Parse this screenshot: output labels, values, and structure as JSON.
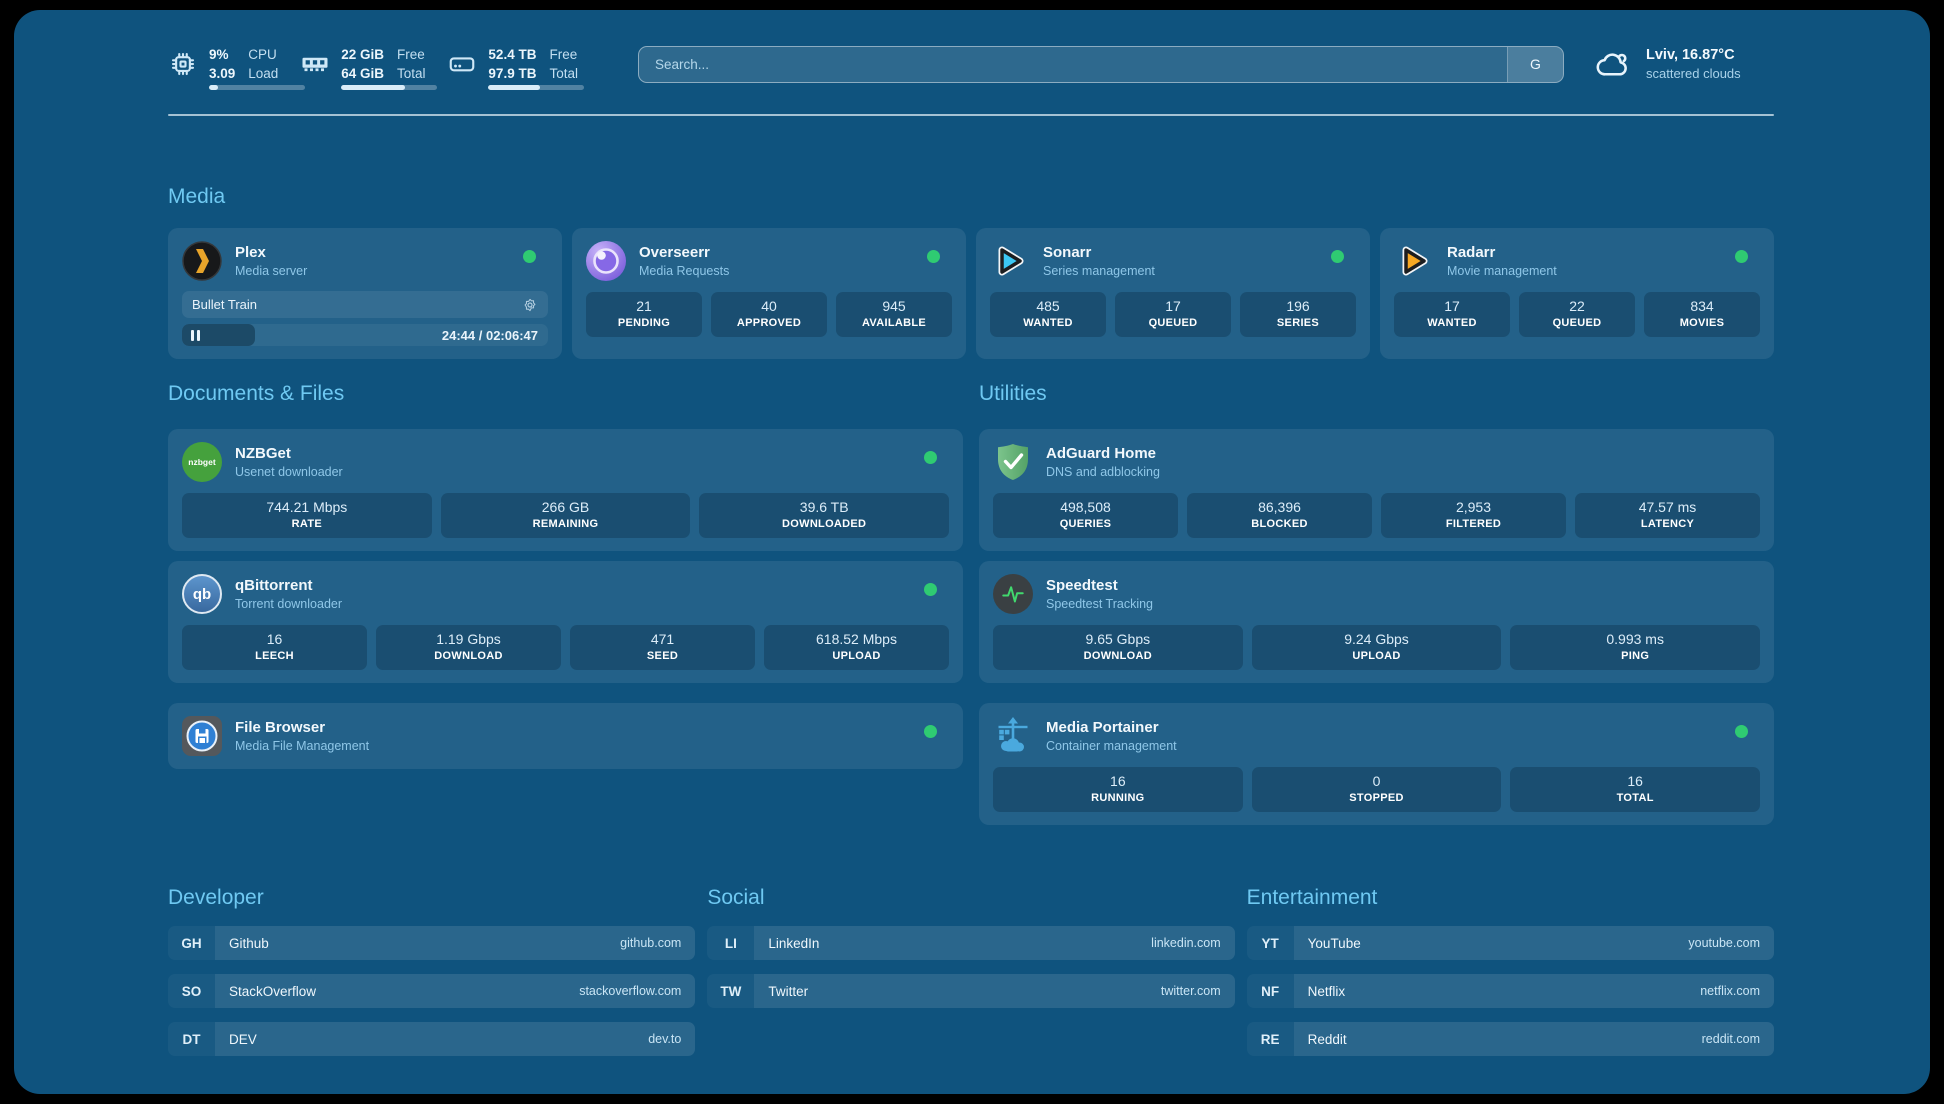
{
  "system": {
    "cpu": {
      "value_top": "9%",
      "value_bottom": "3.09",
      "label_top": "CPU",
      "label_bottom": "Load",
      "progress_pct": 9
    },
    "memory": {
      "value_top": "22 GiB",
      "value_bottom": "64 GiB",
      "label_top": "Free",
      "label_bottom": "Total",
      "progress_pct": 66
    },
    "disk": {
      "value_top": "52.4 TB",
      "value_bottom": "97.9 TB",
      "label_top": "Free",
      "label_bottom": "Total",
      "progress_pct": 54
    }
  },
  "search": {
    "placeholder": "Search...",
    "provider": "G"
  },
  "weather": {
    "location": "Lviv, 16.87°C",
    "condition": "scattered clouds"
  },
  "sections": {
    "media": "Media",
    "documents": "Documents & Files",
    "utilities": "Utilities",
    "developer": "Developer",
    "social": "Social",
    "entertainment": "Entertainment"
  },
  "apps": {
    "plex": {
      "name": "Plex",
      "desc": "Media server",
      "now_playing": {
        "title": "Bullet Train",
        "time": "24:44 / 02:06:47",
        "progress_pct": 20
      }
    },
    "overseerr": {
      "name": "Overseerr",
      "desc": "Media Requests",
      "stats": [
        {
          "value": "21",
          "label": "PENDING"
        },
        {
          "value": "40",
          "label": "APPROVED"
        },
        {
          "value": "945",
          "label": "AVAILABLE"
        }
      ]
    },
    "sonarr": {
      "name": "Sonarr",
      "desc": "Series management",
      "stats": [
        {
          "value": "485",
          "label": "WANTED"
        },
        {
          "value": "17",
          "label": "QUEUED"
        },
        {
          "value": "196",
          "label": "SERIES"
        }
      ]
    },
    "radarr": {
      "name": "Radarr",
      "desc": "Movie management",
      "stats": [
        {
          "value": "17",
          "label": "WANTED"
        },
        {
          "value": "22",
          "label": "QUEUED"
        },
        {
          "value": "834",
          "label": "MOVIES"
        }
      ]
    },
    "nzbget": {
      "name": "NZBGet",
      "desc": "Usenet downloader",
      "icon_text": "nzbget",
      "stats": [
        {
          "value": "744.21 Mbps",
          "label": "RATE"
        },
        {
          "value": "266 GB",
          "label": "REMAINING"
        },
        {
          "value": "39.6 TB",
          "label": "DOWNLOADED"
        }
      ]
    },
    "adguard": {
      "name": "AdGuard Home",
      "desc": "DNS and adblocking",
      "stats": [
        {
          "value": "498,508",
          "label": "QUERIES"
        },
        {
          "value": "86,396",
          "label": "BLOCKED"
        },
        {
          "value": "2,953",
          "label": "FILTERED"
        },
        {
          "value": "47.57 ms",
          "label": "LATENCY"
        }
      ]
    },
    "qbittorrent": {
      "name": "qBittorrent",
      "desc": "Torrent downloader",
      "icon_text": "qb",
      "stats": [
        {
          "value": "16",
          "label": "LEECH"
        },
        {
          "value": "1.19 Gbps",
          "label": "DOWNLOAD"
        },
        {
          "value": "471",
          "label": "SEED"
        },
        {
          "value": "618.52 Mbps",
          "label": "UPLOAD"
        }
      ]
    },
    "speedtest": {
      "name": "Speedtest",
      "desc": "Speedtest Tracking",
      "stats": [
        {
          "value": "9.65 Gbps",
          "label": "DOWNLOAD"
        },
        {
          "value": "9.24 Gbps",
          "label": "UPLOAD"
        },
        {
          "value": "0.993 ms",
          "label": "PING"
        }
      ]
    },
    "filebrowser": {
      "name": "File Browser",
      "desc": "Media File Management"
    },
    "portainer": {
      "name": "Media Portainer",
      "desc": "Container management",
      "stats": [
        {
          "value": "16",
          "label": "RUNNING"
        },
        {
          "value": "0",
          "label": "STOPPED"
        },
        {
          "value": "16",
          "label": "TOTAL"
        }
      ]
    }
  },
  "bookmarks": {
    "developer": [
      {
        "abbr": "GH",
        "name": "Github",
        "domain": "github.com"
      },
      {
        "abbr": "SO",
        "name": "StackOverflow",
        "domain": "stackoverflow.com"
      },
      {
        "abbr": "DT",
        "name": "DEV",
        "domain": "dev.to"
      }
    ],
    "social": [
      {
        "abbr": "LI",
        "name": "LinkedIn",
        "domain": "linkedin.com"
      },
      {
        "abbr": "TW",
        "name": "Twitter",
        "domain": "twitter.com"
      }
    ],
    "entertainment": [
      {
        "abbr": "YT",
        "name": "YouTube",
        "domain": "youtube.com"
      },
      {
        "abbr": "NF",
        "name": "Netflix",
        "domain": "netflix.com"
      },
      {
        "abbr": "RE",
        "name": "Reddit",
        "domain": "reddit.com"
      }
    ]
  },
  "colors": {
    "status_online": "#2fcb72",
    "accent": "#6fc9f2",
    "page_bg": "#0f537e"
  }
}
